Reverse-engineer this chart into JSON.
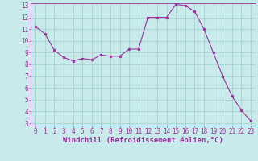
{
  "x": [
    0,
    1,
    2,
    3,
    4,
    5,
    6,
    7,
    8,
    9,
    10,
    11,
    12,
    13,
    14,
    15,
    16,
    17,
    18,
    19,
    20,
    21,
    22,
    23
  ],
  "y": [
    11.2,
    10.6,
    9.2,
    8.6,
    8.3,
    8.5,
    8.4,
    8.8,
    8.7,
    8.7,
    9.3,
    9.3,
    12.0,
    12.0,
    12.0,
    13.1,
    13.0,
    12.5,
    11.0,
    9.0,
    7.0,
    5.3,
    4.1,
    3.2
  ],
  "line_color": "#993399",
  "marker_color": "#993399",
  "bg_color": "#c8eaea",
  "grid_color": "#a0cccc",
  "xlabel": "Windchill (Refroidissement éolien,°C)",
  "xlim": [
    -0.5,
    23.5
  ],
  "ylim": [
    2.8,
    13.2
  ],
  "yticks": [
    3,
    4,
    5,
    6,
    7,
    8,
    9,
    10,
    11,
    12,
    13
  ],
  "xticks": [
    0,
    1,
    2,
    3,
    4,
    5,
    6,
    7,
    8,
    9,
    10,
    11,
    12,
    13,
    14,
    15,
    16,
    17,
    18,
    19,
    20,
    21,
    22,
    23
  ],
  "tick_label_size": 5.5,
  "xlabel_size": 6.5,
  "axis_color": "#993399",
  "spine_color": "#993399"
}
